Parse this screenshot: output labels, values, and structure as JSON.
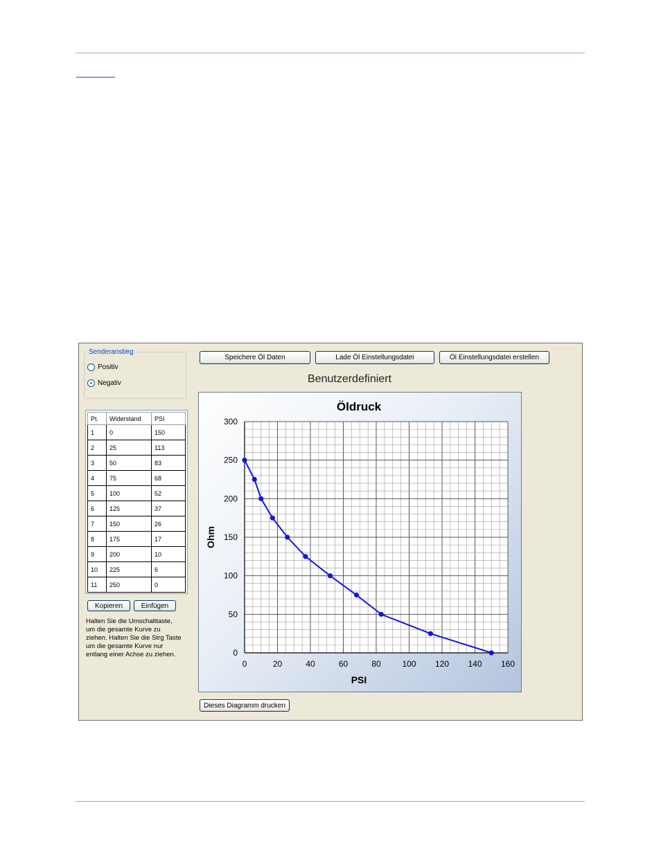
{
  "window": {
    "sender_group": {
      "title": "Senderanstieg",
      "options": [
        {
          "label": "Positiv",
          "selected": false
        },
        {
          "label": "Negativ",
          "selected": true
        }
      ]
    },
    "table": {
      "headers": [
        "Pt.",
        "Widerstand",
        "PSI"
      ],
      "rows": [
        [
          "1",
          "0",
          "150"
        ],
        [
          "2",
          "25",
          "113"
        ],
        [
          "3",
          "50",
          "83"
        ],
        [
          "4",
          "75",
          "68"
        ],
        [
          "5",
          "100",
          "52"
        ],
        [
          "6",
          "125",
          "37"
        ],
        [
          "7",
          "150",
          "26"
        ],
        [
          "8",
          "175",
          "17"
        ],
        [
          "9",
          "200",
          "10"
        ],
        [
          "10",
          "225",
          "6"
        ],
        [
          "11",
          "250",
          "0"
        ]
      ]
    },
    "buttons": {
      "copy": "Kopieren",
      "paste": "Einfügen",
      "save": "Speichere Öl Daten",
      "load": "Lade Öl Einstellungsdatei",
      "create": "Öl Einstellungsdatei erstellen",
      "print": "Dieses Diagramm drucken"
    },
    "hint": "Halten Sie die Umschalttaste, um die gesamte Kurve zu ziehen.  Halten Sie die Strg Taste um die gesamte Kurve nur entlang einer Achse zu ziehen.",
    "custom_title": "Benutzerdefiniert"
  },
  "chart_data": {
    "type": "line",
    "title": "Öldruck",
    "xlabel": "PSI",
    "ylabel": "Ohm",
    "xlim": [
      0,
      160
    ],
    "ylim": [
      0,
      300
    ],
    "xticks": [
      0,
      20,
      40,
      60,
      80,
      100,
      120,
      140,
      160
    ],
    "yticks": [
      0,
      50,
      100,
      150,
      200,
      250,
      300
    ],
    "grid": true,
    "line_color": "#1414dc",
    "points": [
      {
        "x": 150,
        "y": 0
      },
      {
        "x": 113,
        "y": 25
      },
      {
        "x": 83,
        "y": 50
      },
      {
        "x": 68,
        "y": 75
      },
      {
        "x": 52,
        "y": 100
      },
      {
        "x": 37,
        "y": 125
      },
      {
        "x": 26,
        "y": 150
      },
      {
        "x": 17,
        "y": 175
      },
      {
        "x": 10,
        "y": 200
      },
      {
        "x": 6,
        "y": 225
      },
      {
        "x": 0,
        "y": 250
      }
    ]
  }
}
